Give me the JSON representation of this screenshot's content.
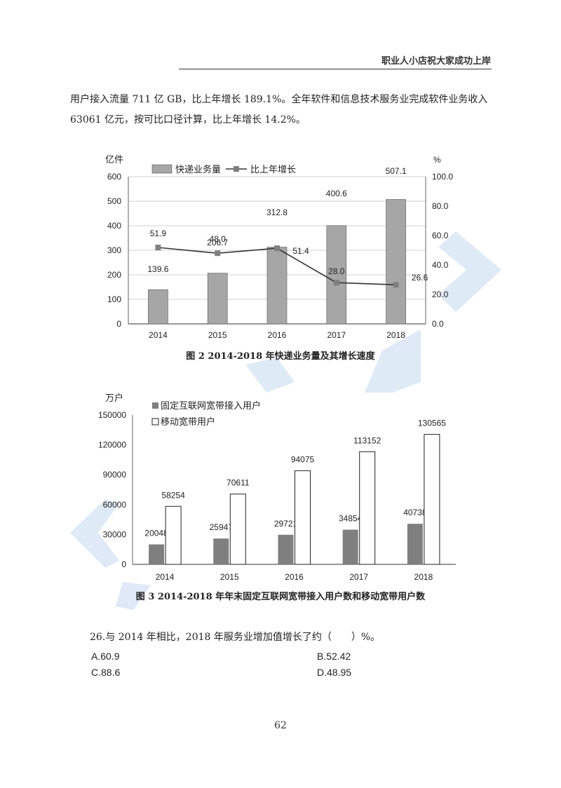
{
  "header": {
    "title": "职业人小店祝大家成功上岸"
  },
  "paragraph": "用户接入流量 711 亿 GB，比上年增长 189.1%。全年软件和信息技术服务业完成软件业务收入 63061 亿元，按可比口径计算，比上年增长 14.2%。",
  "colors": {
    "bar_gray": "#a6a6a6",
    "bar_dark": "#7f7f7f",
    "line": "#333333",
    "marker": "#7f7f7f",
    "watermark": "#c5d8f1"
  },
  "chart_data": [
    {
      "type": "bar",
      "title": "图 2 2014-2018 年快递业务量及其增长速度",
      "categories": [
        "2014",
        "2015",
        "2016",
        "2017",
        "2018"
      ],
      "ylabel": "亿件",
      "y2label": "%",
      "ylim": [
        0,
        600
      ],
      "y2lim": [
        0,
        100
      ],
      "yticks": [
        "0",
        "100",
        "200",
        "300",
        "400",
        "500",
        "600"
      ],
      "y2ticks": [
        "0.0",
        "20.0",
        "40.0",
        "60.0",
        "80.0",
        "100.0"
      ],
      "series": [
        {
          "name": "快递业务量",
          "type": "bar",
          "axis": "left",
          "values": [
            139.6,
            206.7,
            312.8,
            400.6,
            507.1
          ],
          "labels": [
            "139.6",
            "206.7",
            "312.8",
            "400.6",
            "507.1"
          ]
        },
        {
          "name": "比上年增长",
          "type": "line",
          "axis": "right",
          "values": [
            51.9,
            48.0,
            51.4,
            28.0,
            26.6
          ],
          "labels": [
            "51.9",
            "48.0",
            "51.4",
            "28.0",
            "26.6"
          ]
        }
      ],
      "legend": "top-left",
      "grid": true
    },
    {
      "type": "bar",
      "title": "图 3 2014-2018 年年末固定互联网宽带接入用户数和移动宽带用户数",
      "categories": [
        "2014",
        "2015",
        "2016",
        "2017",
        "2018"
      ],
      "ylabel": "万户",
      "ylim": [
        0,
        150000
      ],
      "yticks": [
        "0",
        "30000",
        "60000",
        "90000",
        "120000",
        "150000"
      ],
      "series": [
        {
          "name": "固定互联网宽带接入用户",
          "values": [
            20048,
            25947,
            29721,
            34854,
            40738
          ],
          "labels": [
            "20048",
            "25947",
            "29721",
            "34854",
            "40738"
          ]
        },
        {
          "name": "移动宽带用户",
          "values": [
            58254,
            70611,
            94075,
            113152,
            130565
          ],
          "labels": [
            "58254",
            "70611",
            "94075",
            "113152",
            "130565"
          ]
        }
      ],
      "legend": "top-left",
      "grid": false
    }
  ],
  "question": {
    "text": "26.与 2014 年相比，2018 年服务业增加值增长了约（　　）%。",
    "options": [
      {
        "label": "A.60.9"
      },
      {
        "label": "B.52.42"
      },
      {
        "label": "C.88.6"
      },
      {
        "label": "D.48.95"
      }
    ]
  },
  "page_number": "62"
}
